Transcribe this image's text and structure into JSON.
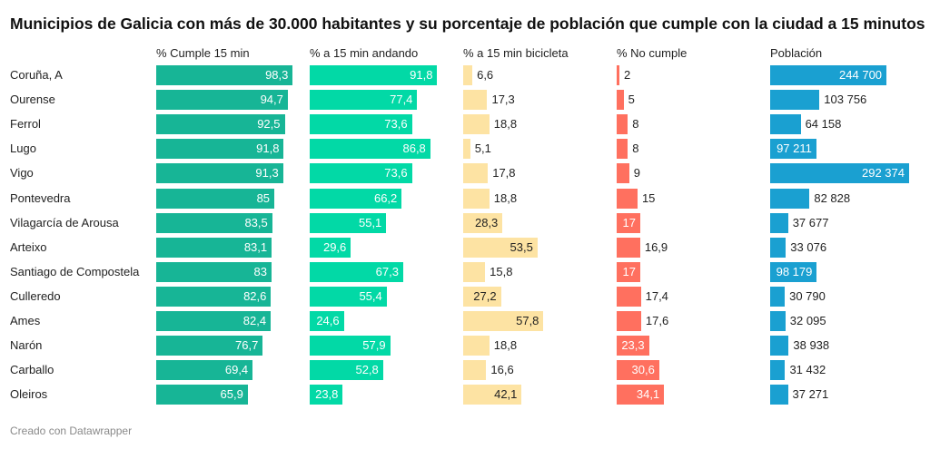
{
  "title": "Municipios de Galicia con más de 30.000 habitantes y su porcentaje de población que cumple con la ciudad a 15 minutos",
  "footer": "Creado con Datawrapper",
  "chart_data": {
    "type": "table",
    "categories": [
      "Coruña, A",
      "Ourense",
      "Ferrol",
      "Lugo",
      "Vigo",
      "Pontevedra",
      "Vilagarcía de Arousa",
      "Arteixo",
      "Santiago de Compostela",
      "Culleredo",
      "Ames",
      "Narón",
      "Carballo",
      "Oleiros"
    ],
    "series": [
      {
        "name": "% Cumple 15 min",
        "color": "#17b596",
        "max": 100,
        "values": [
          98.3,
          94.7,
          92.5,
          91.8,
          91.3,
          85,
          83.5,
          83.1,
          83,
          82.6,
          82.4,
          76.7,
          69.4,
          65.9
        ],
        "labels": [
          "98,3",
          "94,7",
          "92,5",
          "91,8",
          "91,3",
          "85",
          "83,5",
          "83,1",
          "83",
          "82,6",
          "82,4",
          "76,7",
          "69,4",
          "65,9"
        ]
      },
      {
        "name": "% a 15 min andando",
        "color": "#02d9a6",
        "max": 100,
        "values": [
          91.8,
          77.4,
          73.6,
          86.8,
          73.6,
          66.2,
          55.1,
          29.6,
          67.3,
          55.4,
          24.6,
          57.9,
          52.8,
          23.8
        ],
        "labels": [
          "91,8",
          "77,4",
          "73,6",
          "86,8",
          "73,6",
          "66,2",
          "55,1",
          "29,6",
          "67,3",
          "55,4",
          "24,6",
          "57,9",
          "52,8",
          "23,8"
        ]
      },
      {
        "name": "% a 15 min bicicleta",
        "color": "#fde3a3",
        "max": 100,
        "values": [
          6.6,
          17.3,
          18.8,
          5.1,
          17.8,
          18.8,
          28.3,
          53.5,
          15.8,
          27.2,
          57.8,
          18.8,
          16.6,
          42.1
        ],
        "labels": [
          "6,6",
          "17,3",
          "18,8",
          "5,1",
          "17,8",
          "18,8",
          "28,3",
          "53,5",
          "15,8",
          "27,2",
          "57,8",
          "18,8",
          "16,6",
          "42,1"
        ]
      },
      {
        "name": "% No cumple",
        "color": "#ff705f",
        "max": 100,
        "values": [
          2,
          5,
          8,
          8,
          9,
          15,
          17,
          16.9,
          17,
          17.4,
          17.6,
          23.3,
          30.6,
          34.1
        ],
        "labels": [
          "2",
          "5",
          "8",
          "8",
          "9",
          "15",
          "17",
          "16,9",
          "17",
          "17,4",
          "17,6",
          "23,3",
          "30,6",
          "34,1"
        ]
      },
      {
        "name": "Población",
        "color": "#1aa0d1",
        "max": 292374,
        "values": [
          244700,
          103756,
          64158,
          97211,
          292374,
          82828,
          37677,
          33076,
          98179,
          30790,
          32095,
          38938,
          31432,
          37271
        ],
        "labels": [
          "244 700",
          "103 756",
          "64 158",
          "97 211",
          "292 374",
          "82 828",
          "37 677",
          "33 076",
          "98 179",
          "30 790",
          "32 095",
          "38 938",
          "31 432",
          "37 271"
        ]
      }
    ]
  }
}
